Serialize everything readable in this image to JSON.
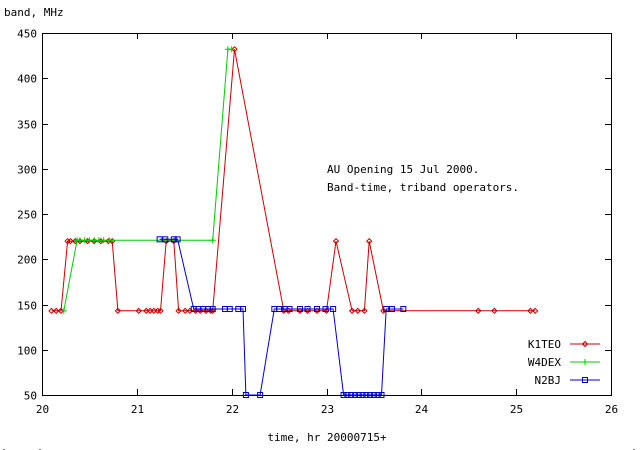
{
  "chart_data": {
    "type": "line",
    "title": "",
    "ylabel": "band, MHz",
    "xlabel": "time, hr  20000715+",
    "xlim": [
      20,
      26
    ],
    "ylim": [
      50,
      450
    ],
    "xticks": [
      20,
      21,
      22,
      23,
      24,
      25,
      26
    ],
    "yticks": [
      50,
      100,
      150,
      200,
      250,
      300,
      350,
      400,
      450
    ],
    "grid": false,
    "legend_position": "bottom-right",
    "annotations": [
      "AU Opening 15 Jul 2000.",
      "Band-time, triband operators."
    ],
    "series": [
      {
        "name": "K1TEO",
        "color": "#cc0000",
        "marker": "diamond",
        "x": [
          20.1,
          20.15,
          20.2,
          20.27,
          20.3,
          20.35,
          20.4,
          20.48,
          20.55,
          20.62,
          20.7,
          20.74,
          20.8,
          21.02,
          21.1,
          21.14,
          21.18,
          21.22,
          21.25,
          21.31,
          21.39,
          21.44,
          21.51,
          21.56,
          21.62,
          21.67,
          21.73,
          21.78,
          21.8,
          22.03,
          22.55,
          22.6,
          22.72,
          22.8,
          22.9,
          23.0,
          23.1,
          23.27,
          23.33,
          23.4,
          23.45,
          23.6,
          24.6,
          24.77,
          25.15,
          25.2
        ],
        "y": [
          143,
          143,
          143,
          220,
          220,
          220,
          220,
          220,
          220,
          220,
          220,
          220,
          143,
          143,
          143,
          143,
          143,
          143,
          143,
          220,
          220,
          143,
          143,
          143,
          143,
          143,
          143,
          143,
          143,
          432,
          143,
          143,
          143,
          143,
          143,
          143,
          220,
          143,
          143,
          143,
          220,
          143,
          143,
          143,
          143,
          143
        ]
      },
      {
        "name": "W4DEX",
        "color": "#00cc00",
        "marker": "plus",
        "x": [
          20.23,
          20.37,
          20.4,
          20.45,
          20.5,
          20.55,
          20.6,
          20.65,
          20.71,
          21.8,
          21.96,
          22.0
        ],
        "y": [
          143,
          221,
          221,
          221,
          221,
          221,
          221,
          221,
          221,
          221,
          432,
          432
        ]
      },
      {
        "name": "N2BJ",
        "color": "#0000cc",
        "marker": "square",
        "x": [
          21.24,
          21.3,
          21.39,
          21.43,
          21.6,
          21.65,
          21.7,
          21.75,
          21.8,
          21.93,
          21.98,
          22.07,
          22.12,
          22.15,
          22.3,
          22.45,
          22.5,
          22.56,
          22.61,
          22.72,
          22.8,
          22.9,
          22.99,
          23.07,
          23.18,
          23.22,
          23.26,
          23.3,
          23.34,
          23.38,
          23.42,
          23.46,
          23.5,
          23.54,
          23.58,
          23.63,
          23.69,
          23.81
        ],
        "y": [
          222,
          222,
          222,
          222,
          145,
          145,
          145,
          145,
          145,
          145,
          145,
          145,
          145,
          50,
          50,
          145,
          145,
          145,
          145,
          145,
          145,
          145,
          145,
          145,
          50,
          50,
          50,
          50,
          50,
          50,
          50,
          50,
          50,
          50,
          50,
          145,
          145,
          145
        ]
      }
    ]
  }
}
